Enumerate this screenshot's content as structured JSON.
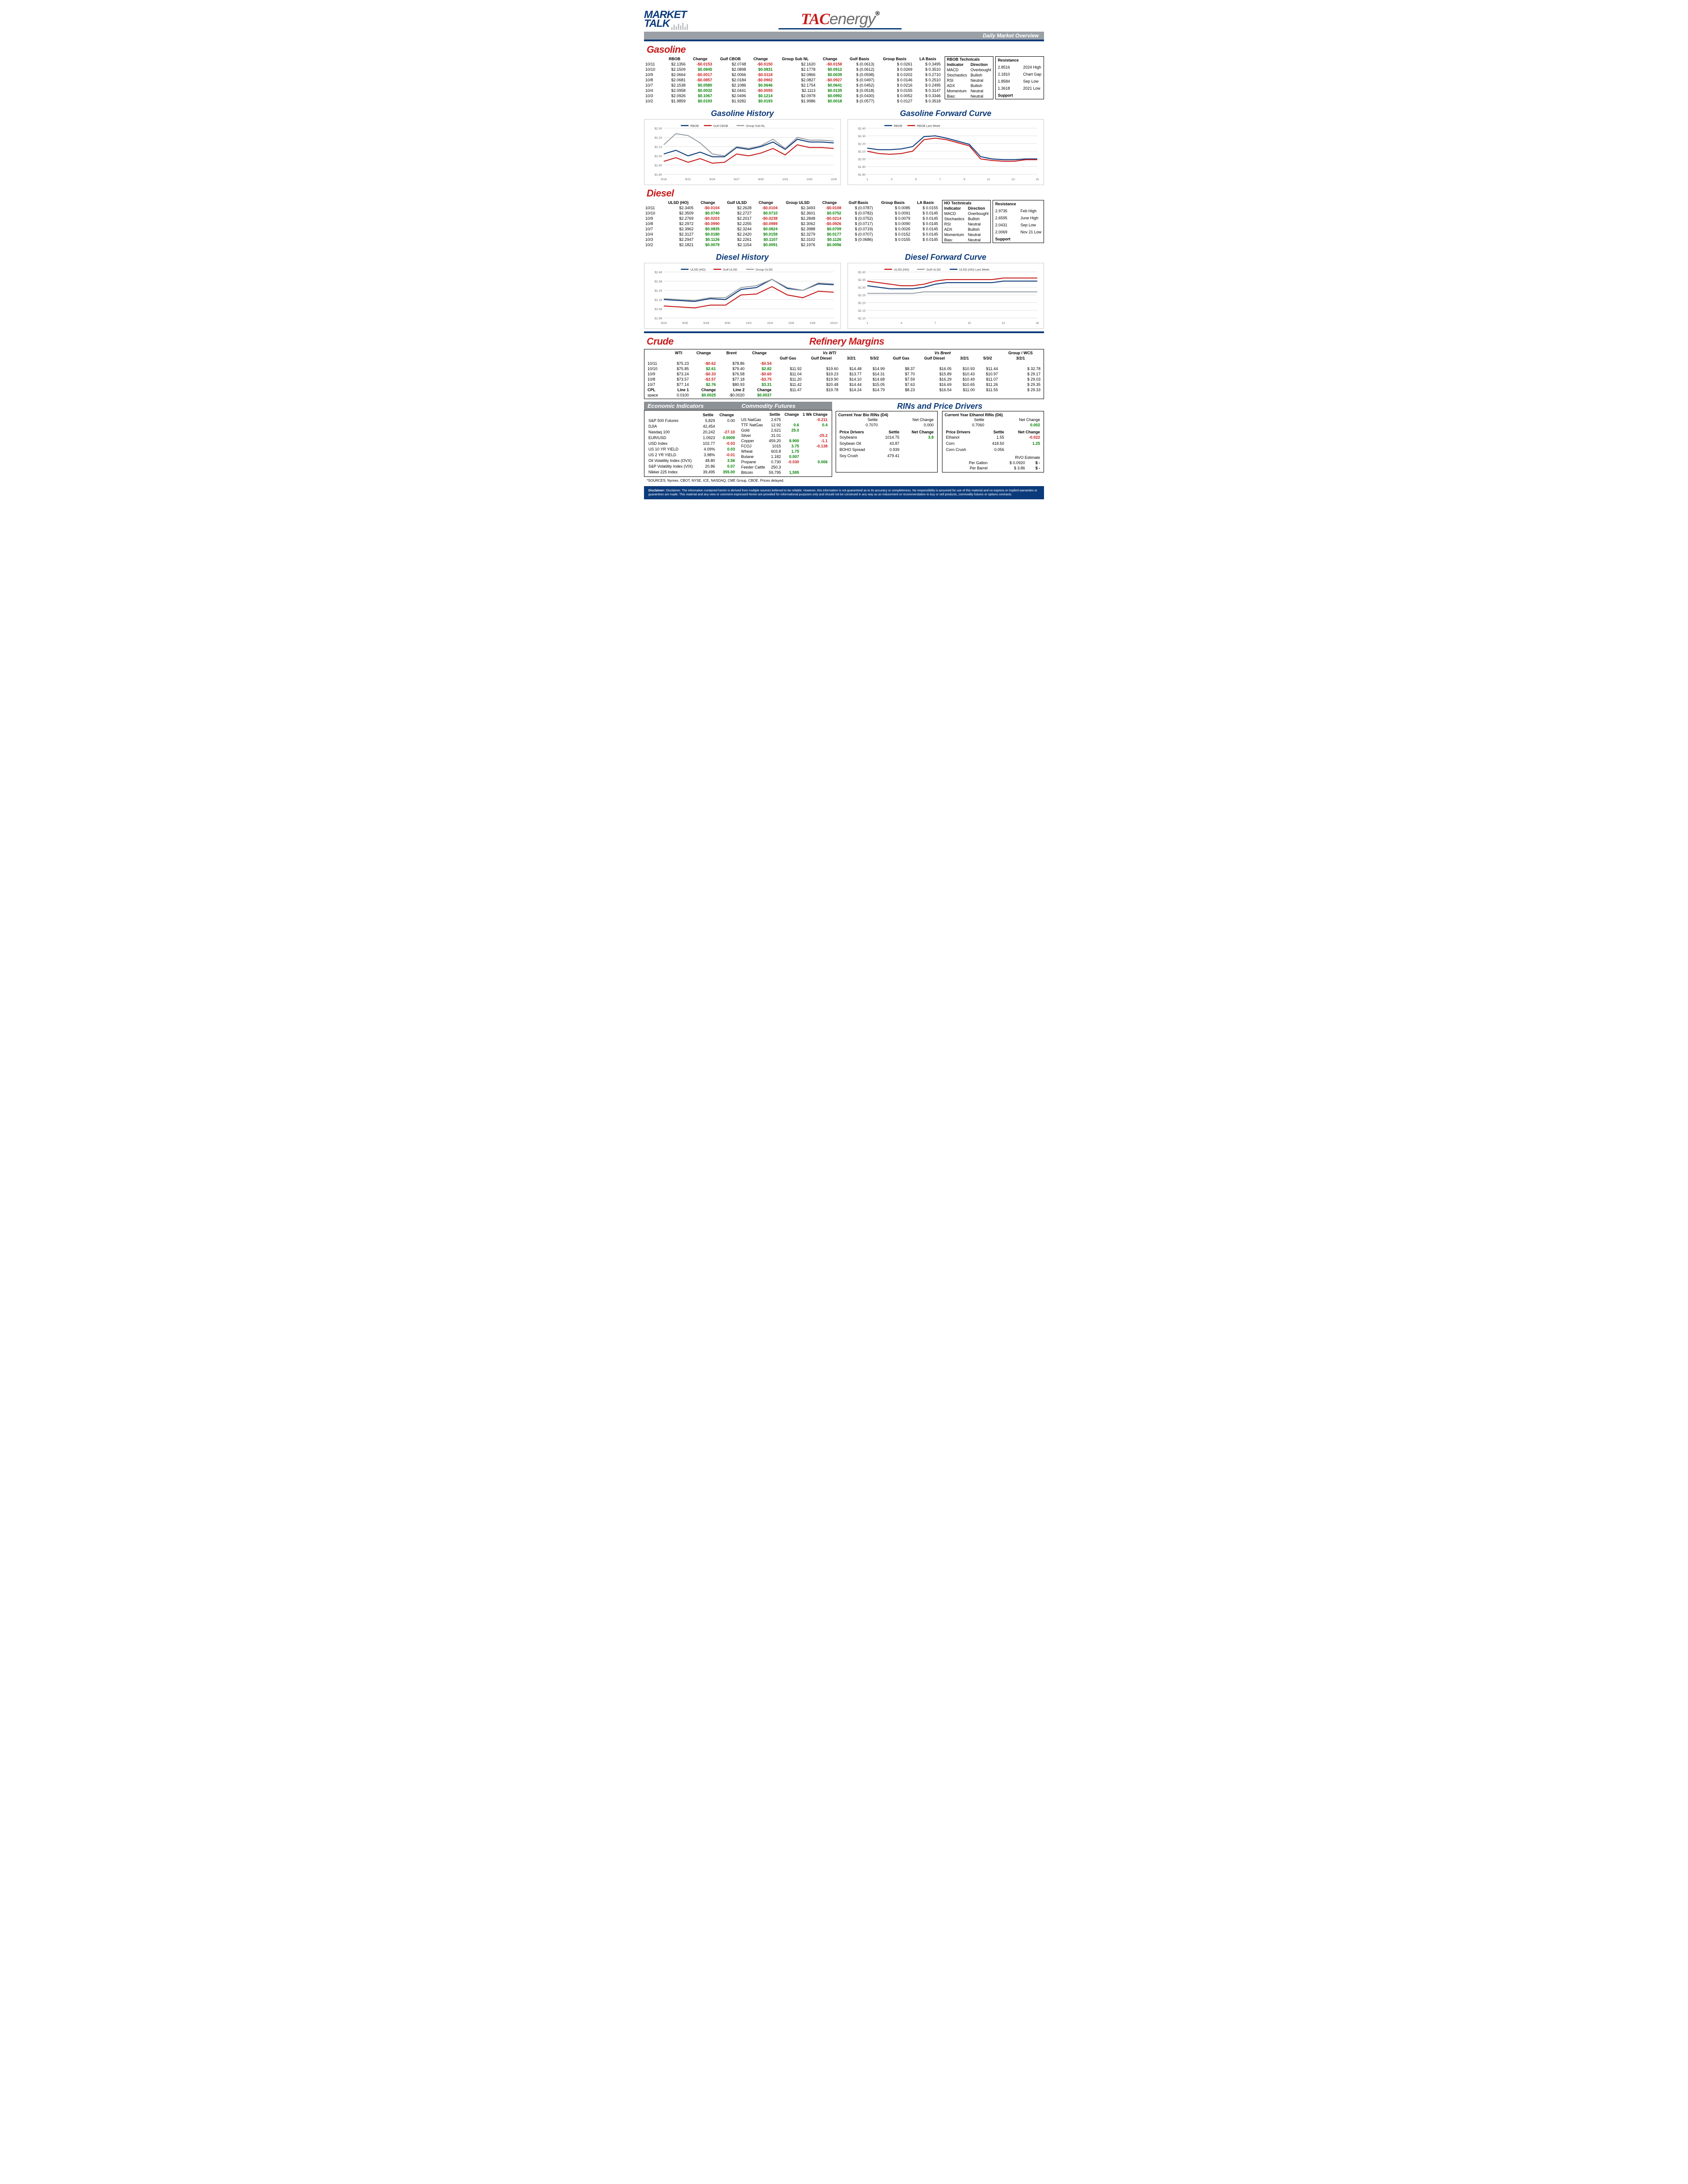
{
  "page_title": "Daily Market Overview",
  "colors": {
    "red": "#c81a1a",
    "blue": "#0b3a7a",
    "grey": "#9aa0a6",
    "pos": "#008000",
    "neg": "#c81a1a",
    "grid": "#e0e0e0",
    "line_rbob": "#0b3a7a",
    "line_gulf": "#c81a1a",
    "line_group": "#9aa0a6"
  },
  "gasoline": {
    "title": "Gasoline",
    "columns": [
      "",
      "RBOB",
      "Change",
      "Gulf CBOB",
      "Change",
      "Group Sub NL",
      "Change",
      "Gulf Basis",
      "Group Basis",
      "LA Basis"
    ],
    "rows": [
      [
        "10/11",
        "$2.1356",
        "-$0.0153",
        "$2.0748",
        "-$0.0150",
        "$2.1620",
        "-$0.0158",
        "$ (0.0613)",
        "$    0.0261",
        "$  0.3495"
      ],
      [
        "10/10",
        "$2.1509",
        "$0.0845",
        "$2.0898",
        "$0.0831",
        "$2.1778",
        "$0.0912",
        "$ (0.0612)",
        "$    0.0269",
        "$  0.3510"
      ],
      [
        "10/9",
        "$2.0664",
        "-$0.0017",
        "$2.0066",
        "-$0.0118",
        "$2.0866",
        "$0.0039",
        "$ (0.0598)",
        "$    0.0202",
        "$  0.2710"
      ],
      [
        "10/8",
        "$2.0681",
        "-$0.0857",
        "$2.0184",
        "-$0.0902",
        "$2.0827",
        "-$0.0927",
        "$ (0.0497)",
        "$    0.0146",
        "$  0.2510"
      ],
      [
        "10/7",
        "$2.1538",
        "$0.0580",
        "$2.1086",
        "$0.0646",
        "$2.1754",
        "$0.0641",
        "$ (0.0452)",
        "$    0.0216",
        "$  0.2495"
      ],
      [
        "10/4",
        "$2.0958",
        "$0.0032",
        "$2.0441",
        "-$0.0055",
        "$2.1113",
        "$0.0135",
        "$ (0.0518)",
        "$    0.0155",
        "$  0.3147"
      ],
      [
        "10/3",
        "$2.0926",
        "$0.1067",
        "$2.0496",
        "$0.1214",
        "$2.0978",
        "$0.0992",
        "$ (0.0430)",
        "$    0.0052",
        "$  0.3346"
      ],
      [
        "10/2",
        "$1.9859",
        "$0.0193",
        "$1.9282",
        "$0.0193",
        "$1.9986",
        "$0.0018",
        "$ (0.0577)",
        "$    0.0127",
        "$  0.3518"
      ]
    ],
    "change_cols": [
      2,
      4,
      6
    ],
    "technicals": {
      "title": "RBOB Technicals",
      "rows": [
        [
          "Indicator",
          "Direction"
        ],
        [
          "MACD",
          "Overbought"
        ],
        [
          "Stochastics",
          "Bullish"
        ],
        [
          "RSI",
          "Neutral"
        ],
        [
          "ADX",
          "Bullish"
        ],
        [
          "Momentum",
          "Neutral"
        ],
        [
          "Bias:",
          "Neutral"
        ]
      ]
    },
    "resistance": {
      "rows": [
        [
          "Resistance",
          ""
        ],
        [
          "2.8516",
          "2024 High"
        ],
        [
          "2.1810",
          "Chart Gap"
        ],
        [
          "1.8584",
          "Sep Low"
        ],
        [
          "1.3618",
          "2021 Low"
        ],
        [
          "Support",
          ""
        ]
      ]
    }
  },
  "gasoline_history": {
    "title": "Gasoline History",
    "xlabels": [
      "9/18",
      "9/21",
      "9/24",
      "9/27",
      "9/30",
      "10/3",
      "10/6",
      "10/9"
    ],
    "ylim": [
      1.8,
      2.3
    ],
    "ystep": 0.1,
    "series": [
      {
        "name": "RBOB",
        "color": "#0b3a7a",
        "values": [
          2.02,
          2.06,
          2.0,
          2.04,
          1.99,
          1.99,
          2.09,
          2.07,
          2.1,
          2.15,
          2.07,
          2.18,
          2.15,
          2.15,
          2.14
        ]
      },
      {
        "name": "Gulf CBOB",
        "color": "#c81a1a",
        "values": [
          1.94,
          1.98,
          1.93,
          1.97,
          1.92,
          1.93,
          2.02,
          2.0,
          2.03,
          2.08,
          2.01,
          2.12,
          2.09,
          2.09,
          2.08
        ]
      },
      {
        "name": "Group Sub NL",
        "color": "#9aa0a6",
        "values": [
          2.12,
          2.24,
          2.22,
          2.14,
          2.02,
          2.0,
          2.1,
          2.08,
          2.11,
          2.18,
          2.08,
          2.2,
          2.17,
          2.17,
          2.16
        ]
      }
    ]
  },
  "gasoline_forward": {
    "title": "Gasoline Forward Curve",
    "xlabels": [
      "1",
      "3",
      "5",
      "7",
      "9",
      "11",
      "13",
      "15"
    ],
    "ylim": [
      1.8,
      2.4
    ],
    "ystep": 0.1,
    "series": [
      {
        "name": "RBOB",
        "color": "#0b3a7a",
        "values": [
          2.14,
          2.12,
          2.12,
          2.13,
          2.16,
          2.29,
          2.3,
          2.27,
          2.23,
          2.19,
          2.03,
          2.0,
          1.99,
          1.99,
          2.0,
          2.0
        ]
      },
      {
        "name": "RBOB Last Week",
        "color": "#c81a1a",
        "values": [
          2.1,
          2.07,
          2.06,
          2.07,
          2.1,
          2.25,
          2.27,
          2.25,
          2.21,
          2.17,
          2.0,
          1.98,
          1.97,
          1.97,
          1.99,
          1.99
        ]
      }
    ]
  },
  "diesel": {
    "title": "Diesel",
    "columns": [
      "",
      "ULSD (HO)",
      "Change",
      "Gulf ULSD",
      "Change",
      "Group ULSD",
      "Change",
      "Gulf Basis",
      "Group Basis",
      "LA Basis"
    ],
    "rows": [
      [
        "10/11",
        "$2.3405",
        "-$0.0104",
        "$2.2628",
        "-$0.0104",
        "$2.3493",
        "-$0.0108",
        "$ (0.0787)",
        "$    0.0085",
        "$  0.0155"
      ],
      [
        "10/10",
        "$2.3509",
        "$0.0740",
        "$2.2727",
        "$0.0710",
        "$2.3601",
        "$0.0752",
        "$ (0.0782)",
        "$    0.0091",
        "$  0.0145"
      ],
      [
        "10/9",
        "$2.2769",
        "-$0.0203",
        "$2.2017",
        "-$0.0238",
        "$2.2848",
        "-$0.0214",
        "$ (0.0752)",
        "$    0.0079",
        "$  0.0145"
      ],
      [
        "10/8",
        "$2.2972",
        "-$0.0990",
        "$2.2255",
        "-$0.0989",
        "$2.3062",
        "-$0.0926",
        "$ (0.0717)",
        "$    0.0090",
        "$  0.0145"
      ],
      [
        "10/7",
        "$2.3962",
        "$0.0835",
        "$2.3244",
        "$0.0824",
        "$2.3988",
        "$0.0709",
        "$ (0.0719)",
        "$    0.0026",
        "$  0.0145"
      ],
      [
        "10/4",
        "$2.3127",
        "$0.0180",
        "$2.2420",
        "$0.0159",
        "$2.3279",
        "$0.0177",
        "$ (0.0707)",
        "$    0.0152",
        "$  0.0145"
      ],
      [
        "10/3",
        "$2.2947",
        "$0.1126",
        "$2.2261",
        "$0.1107",
        "$2.3102",
        "$0.1126",
        "$ (0.0686)",
        "$    0.0155",
        "$  0.0145"
      ],
      [
        "10/2",
        "$2.1821",
        "$0.0079",
        "$2.1154",
        "$0.0091",
        "$2.1976",
        "$0.0056",
        "",
        "",
        ""
      ]
    ],
    "change_cols": [
      2,
      4,
      6
    ],
    "technicals": {
      "title": "HO Technicals",
      "rows": [
        [
          "Indicator",
          "Direction"
        ],
        [
          "MACD",
          "Overbought"
        ],
        [
          "Stochastics",
          "Bullish"
        ],
        [
          "RSI",
          "Neutral"
        ],
        [
          "ADX",
          "Bullish"
        ],
        [
          "Momentum",
          "Neutral"
        ],
        [
          "Bias:",
          "Neutral"
        ]
      ]
    },
    "resistance": {
      "rows": [
        [
          "Resistance",
          ""
        ],
        [
          "2.9735",
          "Feb High"
        ],
        [
          "2.6595",
          "June High"
        ],
        [
          "2.0431",
          "Sep Low"
        ],
        [
          "2.0069",
          "Nov 21 Low"
        ],
        [
          "Support",
          ""
        ]
      ]
    }
  },
  "diesel_history": {
    "title": "Diesel History",
    "xlabels": [
      "9/24",
      "9/26",
      "9/28",
      "9/30",
      "10/2",
      "10/4",
      "10/6",
      "10/8",
      "10/10"
    ],
    "ylim": [
      1.98,
      2.48
    ],
    "ystep": 0.1,
    "series": [
      {
        "name": "ULSD (HO)",
        "color": "#0b3a7a",
        "values": [
          2.18,
          2.17,
          2.16,
          2.19,
          2.18,
          2.29,
          2.31,
          2.4,
          2.3,
          2.28,
          2.35,
          2.34
        ]
      },
      {
        "name": "Gulf ULSD",
        "color": "#c81a1a",
        "values": [
          2.11,
          2.1,
          2.09,
          2.12,
          2.12,
          2.23,
          2.24,
          2.32,
          2.23,
          2.2,
          2.27,
          2.26
        ]
      },
      {
        "name": "Group ULSD",
        "color": "#9aa0a6",
        "values": [
          2.19,
          2.18,
          2.17,
          2.2,
          2.2,
          2.31,
          2.33,
          2.4,
          2.31,
          2.28,
          2.36,
          2.35
        ]
      }
    ]
  },
  "diesel_forward": {
    "title": "Diesel Forward Curve",
    "xlabels": [
      "1",
      "4",
      "7",
      "10",
      "13",
      "16"
    ],
    "ylim": [
      2.1,
      2.4
    ],
    "ystep": 0.05,
    "series": [
      {
        "name": "ULSD (HO)",
        "color": "#c81a1a",
        "values": [
          2.34,
          2.33,
          2.32,
          2.31,
          2.31,
          2.32,
          2.34,
          2.35,
          2.35,
          2.35,
          2.35,
          2.35,
          2.36,
          2.36,
          2.36,
          2.36
        ]
      },
      {
        "name": "Gulf ULSD",
        "color": "#9aa0a6",
        "values": [
          2.26,
          2.26,
          2.26,
          2.26,
          2.26,
          2.27,
          2.27,
          2.27,
          2.27,
          2.27,
          2.27,
          2.27,
          2.27,
          2.27,
          2.27,
          2.27
        ]
      },
      {
        "name": "ULSD (HO) Last Week",
        "color": "#0b3a7a",
        "values": [
          2.31,
          2.3,
          2.29,
          2.29,
          2.29,
          2.3,
          2.32,
          2.33,
          2.33,
          2.33,
          2.33,
          2.33,
          2.34,
          2.34,
          2.34,
          2.34
        ]
      }
    ]
  },
  "crude": {
    "title": "Crude",
    "rm_title": "Refinery Margins",
    "header1": [
      "",
      "WTI",
      "Change",
      "Brent",
      "Change"
    ],
    "header2": [
      "Vs WTI",
      "Vs Brent",
      "Group / WCS"
    ],
    "sub2": [
      "Gulf Gas",
      "Gulf Diesel",
      "3/2/1",
      "5/3/2",
      "Gulf Gas",
      "Gulf Diesel",
      "3/2/1",
      "5/3/2",
      "3/2/1"
    ],
    "rows": [
      [
        "10/11",
        "$75.23",
        "-$0.62",
        "$78.86",
        "-$0.54",
        "",
        "",
        "",
        "",
        "",
        "",
        "",
        "",
        ""
      ],
      [
        "10/10",
        "$75.85",
        "$2.61",
        "$79.40",
        "$2.82",
        "$11.92",
        "$19.60",
        "$14.48",
        "$14.99",
        "$8.37",
        "$16.05",
        "$10.93",
        "$11.44",
        "$    32.78"
      ],
      [
        "10/9",
        "$73.24",
        "-$0.33",
        "$76.58",
        "-$0.60",
        "$11.04",
        "$19.23",
        "$13.77",
        "$14.31",
        "$7.70",
        "$15.89",
        "$10.43",
        "$10.97",
        "$    29.17"
      ],
      [
        "10/8",
        "$73.57",
        "-$3.57",
        "$77.18",
        "-$3.75",
        "$11.20",
        "$19.90",
        "$14.10",
        "$14.68",
        "$7.59",
        "$16.29",
        "$10.49",
        "$11.07",
        "$    29.03"
      ],
      [
        "10/7",
        "$77.14",
        "$2.76",
        "$80.93",
        "$3.31",
        "$11.42",
        "$20.48",
        "$14.44",
        "$15.05",
        "$7.63",
        "$16.69",
        "$10.65",
        "$11.26",
        "$    29.35"
      ]
    ],
    "cpl": [
      "CPL",
      "Line 1",
      "Change",
      "Line 2",
      "Change",
      "$11.47",
      "$19.78",
      "$14.24",
      "$14.79",
      "$8.23",
      "$16.54",
      "$11.00",
      "$11.55",
      "$    29.33"
    ],
    "cpl2": [
      "space",
      "0.0100",
      "$0.0025",
      "-$0.0020",
      "$0.0037",
      "",
      "",
      "",
      "",
      "",
      "",
      "",
      "",
      ""
    ],
    "change_cols": [
      2,
      4
    ]
  },
  "econ": {
    "title": "Economic Indicators",
    "rows": [
      [
        "",
        "Settle",
        "Change"
      ],
      [
        "S&P 500 Futures",
        "5,829",
        "0.00"
      ],
      [
        "DJIA",
        "42,454",
        ""
      ],
      [
        "Nasdaq 100",
        "20,242",
        "-27.10"
      ],
      [
        "EUR/USD",
        "1.0923",
        "0.0009"
      ],
      [
        "USD Index",
        "102.77",
        "-0.03"
      ],
      [
        "US 10 YR YIELD",
        "4.09%",
        "0.03"
      ],
      [
        "US 2 YR YIELD",
        "3.98%",
        "-0.01"
      ],
      [
        "Oil Volatility Index (OVX)",
        "48.80",
        "3.56"
      ],
      [
        "S&P Volatility Index (VIX)",
        "20.86",
        "0.07"
      ],
      [
        "Nikkei 225 Index",
        "39,495",
        "355.00"
      ]
    ]
  },
  "commodity": {
    "title": "Commodity Futures",
    "rows": [
      [
        "",
        "Settle",
        "Change",
        "1 Wk Change"
      ],
      [
        "US NatGas",
        "2.675",
        "",
        "-0.211"
      ],
      [
        "TTF NatGas",
        "12.92",
        "0.6",
        "0.4"
      ],
      [
        "Gold",
        "2,621",
        "25.0",
        ""
      ],
      [
        "Silver",
        "31.01",
        "",
        "-25.2"
      ],
      [
        "Copper",
        "459.20",
        "8.900",
        "-1.1"
      ],
      [
        "FCOJ",
        "1015",
        "3.75",
        "-0.138"
      ],
      [
        "Wheat",
        "603.8",
        "1.75",
        ""
      ],
      [
        "Butane",
        "1.182",
        "0.007",
        ""
      ],
      [
        "Propane",
        "0.730",
        "-0.030",
        "0.006"
      ],
      [
        "Feeder Cattle",
        "250.3",
        "",
        ""
      ],
      [
        "Bitcoin",
        "59,795",
        "1,595",
        ""
      ]
    ]
  },
  "rins": {
    "title": "RINs and Price Drivers",
    "d4": {
      "label": "Current Year Bio RINs (D4)",
      "settle": "0.7070",
      "change": "0.000"
    },
    "d6": {
      "label": "Current Year Ethanol RINs (D6)",
      "settle": "0.7060",
      "change": "0.002"
    },
    "drivers_left": [
      [
        "Price Drivers",
        "Settle",
        "Net Change"
      ],
      [
        "Soybeans",
        "1014.75",
        "3.8"
      ],
      [
        "",
        "",
        ""
      ],
      [
        "Soybean Oil",
        "43.87",
        ""
      ],
      [
        "",
        "",
        ""
      ],
      [
        "BOHO Spread",
        "0.939",
        ""
      ],
      [
        "",
        "",
        ""
      ],
      [
        "Soy Crush",
        "479.41",
        ""
      ]
    ],
    "drivers_right": [
      [
        "Price Drivers",
        "Settle",
        "Net Change"
      ],
      [
        "Ethanol",
        "1.55",
        "-0.022"
      ],
      [
        "",
        "",
        ""
      ],
      [
        "Corn",
        "418.50",
        "1.25"
      ],
      [
        "",
        "",
        ""
      ],
      [
        "Corn Crush",
        "0.056",
        ""
      ],
      [
        "",
        "",
        ""
      ]
    ],
    "rvo": {
      "label": "RVO Estimate",
      "per_gallon": "$   0.0920",
      "per_gallon_chg": "$         -",
      "per_barrel": "$     3.86",
      "per_barrel_chg": "$         -"
    }
  },
  "sources": "*SOURCES: Nymex, CBOT, NYSE, ICE, NASDAQ, CME Group, CBOE.   Prices delayed.",
  "disclaimer": "Disclaimer: The information contained herein is derived from multiple sources believed to be reliable. However, this information is not guaranteed as to its accuracy or completeness. No responsibility is assumed for use of this material and no express or implied warranties or guarantees are made. This material and any view or comment expressed herein are provided for informational purposes only and should not be construed in any way as an inducement or recommendation to buy or sell products, commodity futures or options contracts."
}
